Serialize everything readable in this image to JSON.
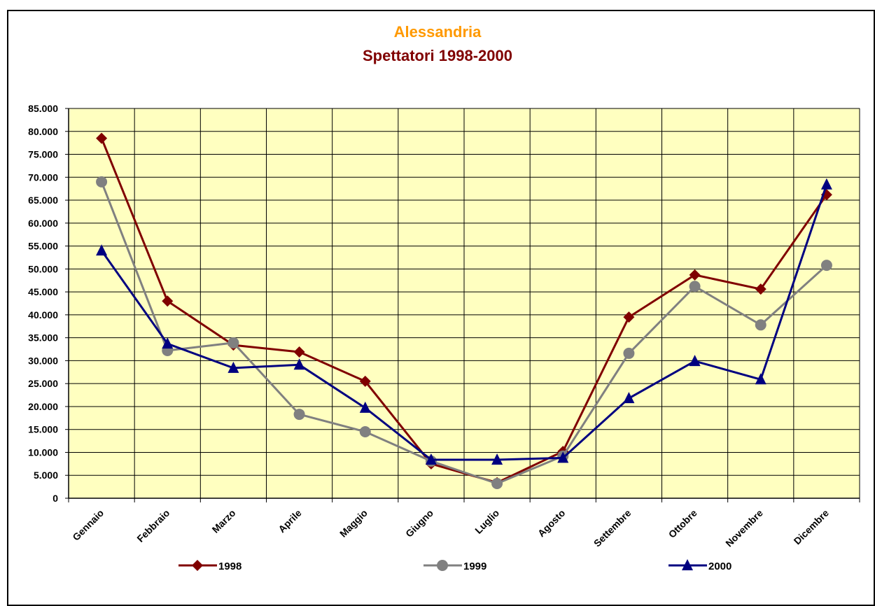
{
  "chart_data": {
    "type": "line",
    "title": "Alessandria",
    "subtitle": "Spettatori 1998-2000",
    "categories": [
      "Gennaio",
      "Febbraio",
      "Marzo",
      "Aprile",
      "Maggio",
      "Giugno",
      "Luglio",
      "Agosto",
      "Settembre",
      "Ottobre",
      "Novembre",
      "Dicembre"
    ],
    "series": [
      {
        "name": "1998",
        "color": "#800000",
        "marker": "diamond",
        "values": [
          78500,
          43000,
          33400,
          31900,
          25500,
          7500,
          3400,
          10200,
          39500,
          48700,
          45600,
          66200
        ]
      },
      {
        "name": "1999",
        "color": "#808080",
        "marker": "circle",
        "values": [
          69000,
          32200,
          33900,
          18300,
          14500,
          8100,
          3200,
          9200,
          31600,
          46200,
          37800,
          50800
        ]
      },
      {
        "name": "2000",
        "color": "#000080",
        "marker": "triangle",
        "values": [
          54000,
          33700,
          28400,
          29100,
          19700,
          8400,
          8400,
          8800,
          21800,
          29900,
          25900,
          68400
        ]
      }
    ],
    "ylim": [
      0,
      85000
    ],
    "yticks": [
      0,
      {
        "value": 5000,
        "label": "5.000"
      },
      {
        "value": 10000,
        "label": "10.000"
      },
      {
        "value": 15000,
        "label": "15.000"
      },
      {
        "value": 20000,
        "label": "20.000"
      },
      {
        "value": 25000,
        "label": "25.000"
      },
      {
        "value": 30000,
        "label": "30.000"
      },
      {
        "value": 35000,
        "label": "35.000"
      },
      {
        "value": 40000,
        "label": "40.000"
      },
      {
        "value": 45000,
        "label": "45.000"
      },
      {
        "value": 50000,
        "label": "50.000"
      },
      {
        "value": 55000,
        "label": "55.000"
      },
      {
        "value": 60000,
        "label": "60.000"
      },
      {
        "value": 65000,
        "label": "65.000"
      },
      {
        "value": 70000,
        "label": "70.000"
      },
      {
        "value": 75000,
        "label": "75.000"
      },
      {
        "value": 80000,
        "label": "80.000"
      },
      {
        "value": 85000,
        "label": "85.000"
      }
    ],
    "grid": true,
    "plot_background": "#ffffc0",
    "legend": "bottom"
  }
}
